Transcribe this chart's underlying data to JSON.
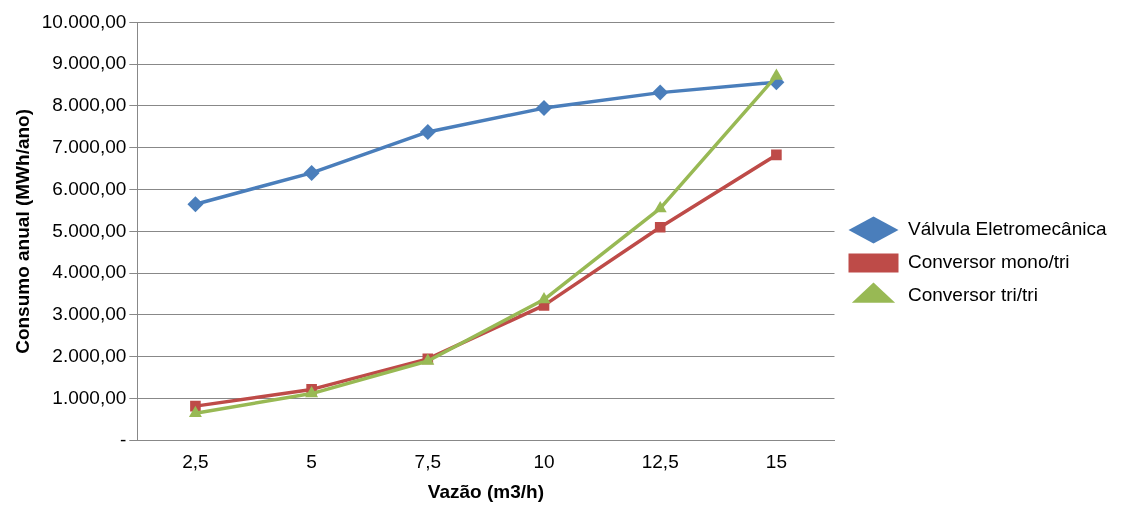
{
  "chart_data": {
    "type": "line",
    "xlabel": "Vazão (m3/h)",
    "ylabel": "Consumo anual (MWh/ano)",
    "categories": [
      "2,5",
      "5",
      "7,5",
      "10",
      "12,5",
      "15"
    ],
    "series": [
      {
        "name": "Válvula Eletromecânica",
        "color": "#4a7ebb",
        "marker": "diamond",
        "values": [
          5650,
          6400,
          7380,
          7950,
          8320,
          8570
        ]
      },
      {
        "name": "Conversor mono/tri",
        "color": "#be4b48",
        "marker": "square",
        "values": [
          820,
          1220,
          1950,
          3230,
          5100,
          6830
        ]
      },
      {
        "name": "Conversor tri/tri",
        "color": "#98b954",
        "marker": "triangle",
        "values": [
          650,
          1120,
          1900,
          3370,
          5550,
          8720
        ]
      }
    ],
    "ylim": [
      0,
      10000
    ],
    "yticks": [
      {
        "value": 0,
        "label": "-"
      },
      {
        "value": 1000,
        "label": "1.000,00"
      },
      {
        "value": 2000,
        "label": "2.000,00"
      },
      {
        "value": 3000,
        "label": "3.000,00"
      },
      {
        "value": 4000,
        "label": "4.000,00"
      },
      {
        "value": 5000,
        "label": "5.000,00"
      },
      {
        "value": 6000,
        "label": "6.000,00"
      },
      {
        "value": 7000,
        "label": "7.000,00"
      },
      {
        "value": 8000,
        "label": "8.000,00"
      },
      {
        "value": 9000,
        "label": "9.000,00"
      },
      {
        "value": 10000,
        "label": "10.000,00"
      }
    ],
    "grid": "y",
    "legend": "right",
    "line_style": "solid"
  }
}
